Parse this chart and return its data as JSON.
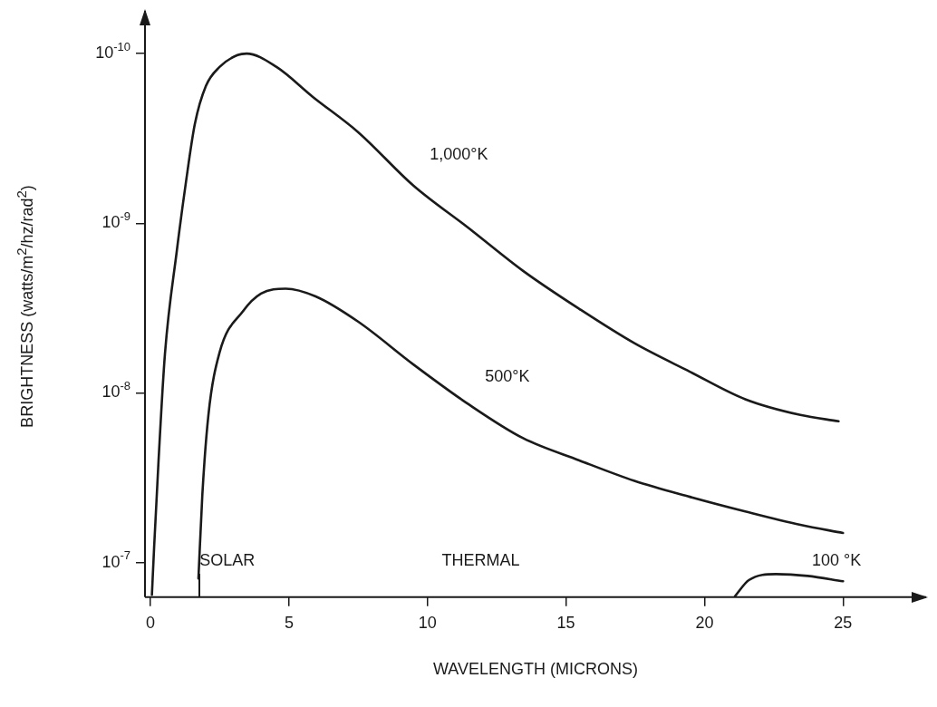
{
  "chart_data": {
    "type": "line",
    "xlabel": "WAVELENGTH (MICRONS)",
    "ylabel": "BRIGHTNESS  (watts/m$^{2}$/hz/rad$^{2}$)",
    "log": "y",
    "xlim": [
      -0.2,
      28
    ],
    "xticks": [
      0,
      5,
      10,
      15,
      20,
      25
    ],
    "ylim": [
      1.6e-07,
      5.6e-11
    ],
    "yticks": [
      {
        "value": 1e-10,
        "label": "10$^{-10}$"
      },
      {
        "value": 1e-09,
        "label": "10$^{-9}$"
      },
      {
        "value": 1e-08,
        "label": "10$^{-8}$"
      },
      {
        "value": 1e-07,
        "label": "10$^{-7}$"
      }
    ],
    "series": [
      {
        "name": "1,000°K",
        "color": "#1a1a1a",
        "x": [
          0.05,
          0.13,
          0.29,
          0.52,
          0.95,
          1.28,
          1.6,
          2.0,
          2.49,
          3.14,
          3.47,
          4.55,
          5.86,
          7.49,
          9.49,
          11.49,
          13.45,
          15.48,
          17.47,
          19.47,
          21.47,
          23.46,
          24.84
        ],
        "values": [
          1.55e-07,
          8.1e-08,
          2.5e-08,
          5.9e-09,
          1.45e-09,
          5.7e-10,
          2.6e-10,
          1.55e-10,
          1.2e-10,
          1.02e-10,
          1e-10,
          1.2e-10,
          1.8e-10,
          2.9e-10,
          6e-10,
          1.07e-09,
          1.91e-09,
          3.2e-09,
          5.1e-09,
          7.5e-09,
          1.09e-08,
          1.35e-08,
          1.47e-08
        ]
      },
      {
        "name": "500°K",
        "color": "#1a1a1a",
        "x": [
          1.73,
          1.87,
          2.09,
          2.49,
          3.34,
          3.99,
          4.88,
          5.96,
          7.49,
          9.49,
          11.49,
          13.45,
          15.48,
          17.47,
          19.47,
          21.47,
          23.46,
          25.0
        ],
        "values": [
          1.24e-07,
          4e-08,
          1.35e-08,
          5.8e-09,
          3.3e-09,
          2.6e-09,
          2.43e-09,
          2.7e-09,
          3.8e-09,
          6.8e-09,
          1.17e-08,
          1.85e-08,
          2.5e-08,
          3.3e-08,
          4.1e-08,
          5e-08,
          6e-08,
          6.7e-08
        ]
      },
      {
        "name": "100 °K",
        "color": "#1a1a1a",
        "x": [
          21.1,
          21.6,
          22.58,
          23.72,
          25.0
        ],
        "values": [
          1.58e-07,
          1.27e-07,
          1.17e-07,
          1.2e-07,
          1.29e-07
        ]
      }
    ],
    "annotations": [
      "SOLAR",
      "THERMAL"
    ]
  }
}
